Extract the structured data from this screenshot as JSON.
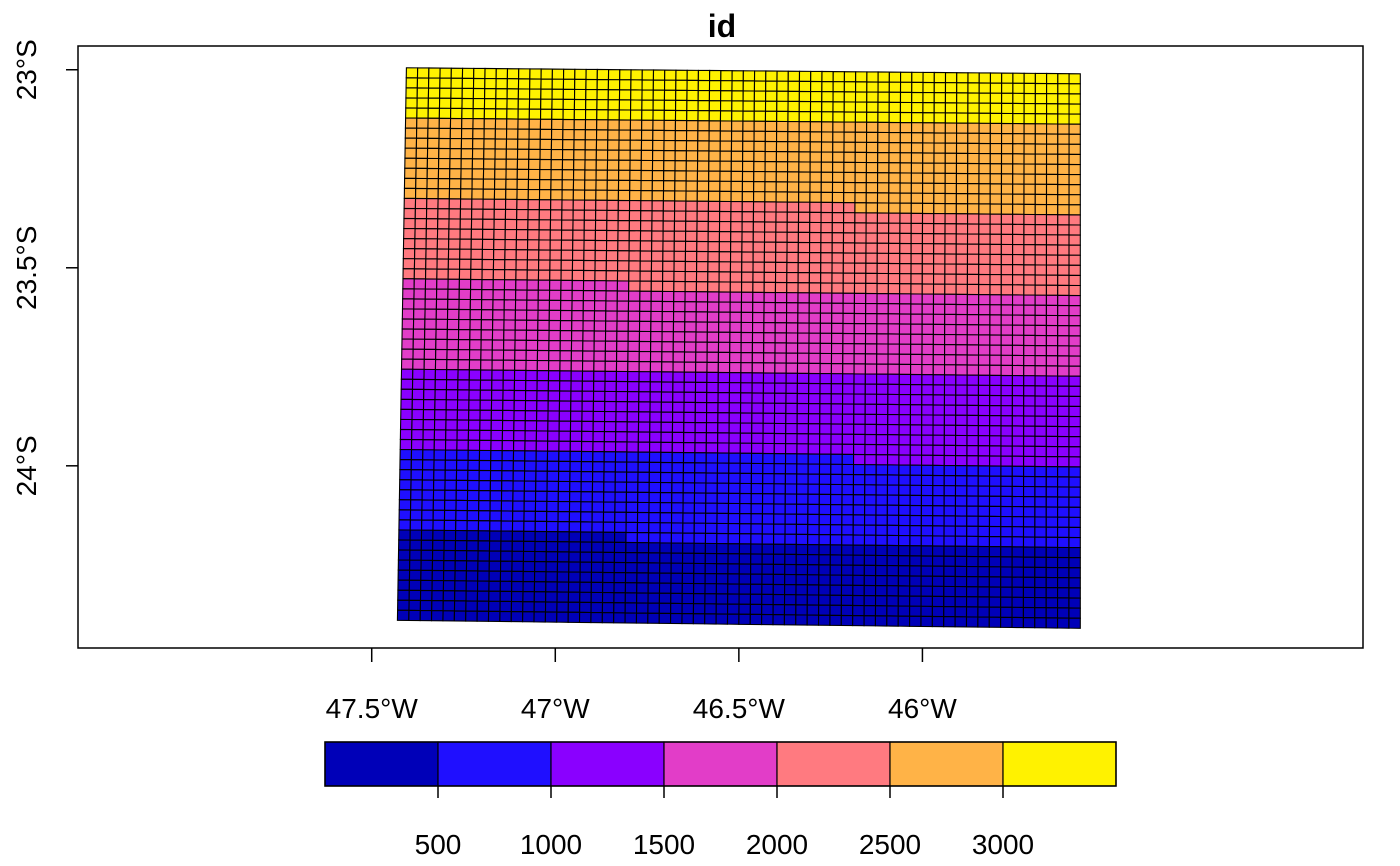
{
  "chart_data": {
    "type": "heatmap",
    "title": "id",
    "x_axis": {
      "ticks": [
        {
          "value": -47.5,
          "label": "47.5°W"
        },
        {
          "value": -47.0,
          "label": "47°W"
        },
        {
          "value": -46.5,
          "label": "46.5°W"
        },
        {
          "value": -46.0,
          "label": "46°W"
        }
      ],
      "range": [
        -48.3,
        -44.8
      ]
    },
    "y_axis": {
      "ticks": [
        {
          "value": -23.0,
          "label": "23°S"
        },
        {
          "value": -23.5,
          "label": "23.5°S"
        },
        {
          "value": -24.0,
          "label": "24°S"
        }
      ],
      "range": [
        -24.46,
        -22.94
      ]
    },
    "grid_extent": {
      "lon_min": -47.43,
      "lon_max": -45.57,
      "lat_top": -22.995,
      "lat_bottom": -24.39
    },
    "grid_dims": {
      "columns": 60,
      "rows": 55
    },
    "id_range": [
      1,
      3300
    ],
    "legend": {
      "placement": "bottom",
      "breaks": [
        0,
        500,
        1000,
        1500,
        2000,
        2500,
        3000,
        3500
      ],
      "tick_labels": [
        "500",
        "1000",
        "1500",
        "2000",
        "2500",
        "3000"
      ],
      "colors": [
        "#0000B8",
        "#1F0FFF",
        "#8A00FF",
        "#E23DC8",
        "#FF7A80",
        "#FFB347",
        "#FFF200"
      ]
    },
    "grid": false
  }
}
